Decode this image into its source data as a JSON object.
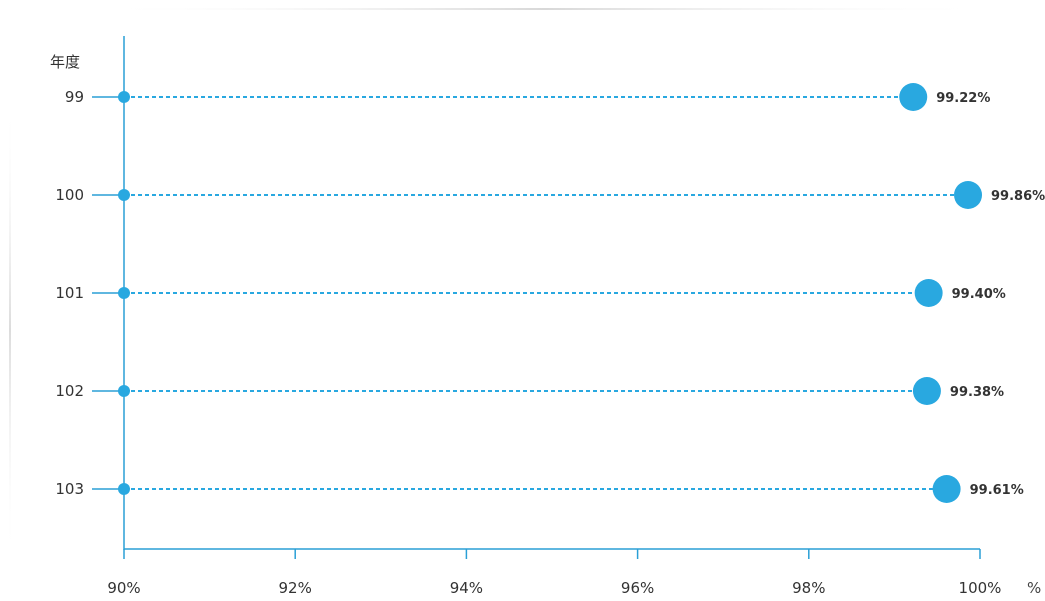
{
  "chart_data": {
    "type": "scatter",
    "orientation": "horizontal",
    "ylabel": "年度",
    "xunit": "%",
    "categories": [
      "99",
      "100",
      "101",
      "102",
      "103"
    ],
    "values": [
      99.22,
      99.86,
      99.4,
      99.38,
      99.61
    ],
    "value_labels": [
      "99.22%",
      "99.86%",
      "99.40%",
      "99.38%",
      "99.61%"
    ],
    "xlim": [
      90,
      100
    ],
    "xticks": [
      90,
      92,
      94,
      96,
      98,
      100
    ],
    "xtick_labels": [
      "90%",
      "92%",
      "94%",
      "96%",
      "98%",
      "100%"
    ],
    "grid": false,
    "colors": {
      "accent": "#29a8e0",
      "axis": "#2a9fd6",
      "text": "#333333"
    }
  }
}
